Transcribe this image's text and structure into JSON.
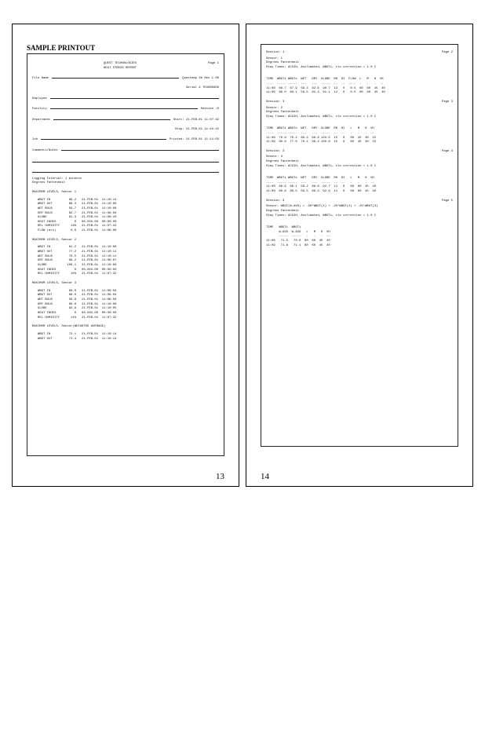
{
  "left": {
    "heading": "SAMPLE PRINTOUT",
    "report_title1": "QUEST TECHNOLOGIES",
    "report_title2": "HEAT STRESS REPORT",
    "page_label": "Page 1",
    "file_name_label": "File Name",
    "file_right1": "Questemp 36  Rev 1.00",
    "file_right2": "Serial # TEG060909",
    "employee_label": "Employee",
    "facility_label": "Facility",
    "session_label": "Session :0",
    "department_label": "Department",
    "start_label": "Start: 21-FEB-01  11:07:32",
    "stop_label": "Stop:  21-FEB-01  11:10:15",
    "job_label": "Job",
    "printed_label": "Printed: 21-FEB-01  11:14:03",
    "comments_label": "Comments/Notes",
    "interval": "Logging Interval:  1 minutes",
    "degrees": "Degrees Fahrenheit",
    "s1_title": "MAXIMUM LEVELS,  Sensor 1",
    "s1_rows": [
      [
        "WBGT IN",
        "69.2",
        "21-FEB-01  11:10:14"
      ],
      [
        "WBGT OUT",
        "68.3",
        "21-FEB-01  11:10:08"
      ],
      [
        "WET BULB",
        "59.7",
        "21-FEB-01  11:10:08"
      ],
      [
        "DRY BULB",
        "82.7",
        "21-FEB-01  11:09:56"
      ],
      [
        "GLOBE",
        "91.3",
        "21-FEB-01  11:08:20"
      ],
      [
        "HEAT INDEX",
        "0",
        "00-XXX-00  00:00:00"
      ],
      [
        "REL HUMIDITY",
        "14%",
        "21-FEB-01  11:07:32"
      ],
      [
        "FLOW (m/s)",
        "0.6",
        "21-FEB-01  11:09:08"
      ]
    ],
    "s2_title": "MAXIMUM LEVELS,  Sensor 2",
    "s2_rows": [
      [
        "WBGT IN",
        "81.2",
        "21-FEB-01  11:10:06"
      ],
      [
        "WBGT OUT",
        "77.2",
        "21-FEB-01  11:10:11"
      ],
      [
        "WET BULB",
        "70.5",
        "21-FEB-01  11:10:11"
      ],
      [
        "DRY BULB",
        "99.2",
        "21-FEB-01  11:09:07"
      ],
      [
        "GLOBE",
        "106.1",
        "21-FEB-01  11:10:06"
      ],
      [
        "HEAT INDEX",
        "0",
        "00-XXX-00  00:00:00"
      ],
      [
        "REL HUMIDITY",
        "15%",
        "21-FEB-01  11:07:32"
      ]
    ],
    "s3_title": "MAXIMUM LEVELS,  Sensor 3",
    "s3_rows": [
      [
        "WBGT IN",
        "69.0",
        "21-FEB-01  11:09:56"
      ],
      [
        "WBGT OUT",
        "68.6",
        "21-FEB-01  11:09:56"
      ],
      [
        "WET BULB",
        "58.8",
        "21-FEB-01  11:09:56"
      ],
      [
        "DRY BULB",
        "88.6",
        "21-FEB-01  11:10:08"
      ],
      [
        "GLOBE",
        "92.9",
        "21-FEB-01  11:10:05"
      ],
      [
        "HEAT INDEX",
        "0",
        "00-XXX-00  00:00:00"
      ],
      [
        "REL HUMIDITY",
        "11%",
        "21-FEB-01  11:07:32"
      ]
    ],
    "savg_title": "MAXIMUM LEVELS,  Sensor(WEIGHTED AVERAGE)",
    "savg_rows": [
      [
        "WBGT IN",
        "72.1",
        "21-FEB-01  11:10:14"
      ],
      [
        "WBGT OUT",
        "71.4",
        "21-FEB-01  11:10:14"
      ]
    ],
    "page_num": "13"
  },
  "right": {
    "page_num": "14",
    "blocks": [
      {
        "page_label": "Page 2",
        "head": [
          "Session: 1",
          "Sensor: 1",
          "Degrees Fahrenheit",
          "Stay Times: ACGIH, Acclimated, WBGTi, clo correction = 1.0 C"
        ],
        "cols": "TIME  WBGTi WBGTo  WET   DRY  GLOBE  RH  HI  FLOW  L   M   H  VH",
        "rows": [
          "11:08  68.7  67.9  59.4  82.6  90.7  13   0   0.5  60  60  45  40",
          "11:09  69.0  68.1  59.5  82.4  91.1  12   0   0.5  60  60  45  40"
        ]
      },
      {
        "page_label": "Page 3",
        "head": [
          "Session: 3",
          "Sensor: 2",
          "Degrees Fahrenheit",
          "Stay Times: ACGIH, Acclimated, WBGTi, clo correction = 1.0 C"
        ],
        "cols": "TIME  WBGTi WBGTo  WET   DRY  GLOBE  RH  HI   L   M   H  VH",
        "rows": [
          "11:08  79.9  76.2  69.4  98.8 104.5  15   0   60  45  30  15",
          "11:09  80.8  77.0  70.1  99.2 105.6  15   0   60  45  30  15"
        ]
      },
      {
        "page_label": "Page 4",
        "head": [
          "Session: 3",
          "Sensor: 3",
          "Degrees Fahrenheit",
          "Stay Times: ACGIH, Acclimated, WBGTi, clo correction = 1.0 C"
        ],
        "cols": "TIME  WBGTi WBGTo  WET   DRY  GLOBE  RH  HI   L   M   H  VH",
        "rows": [
          "11:08  68.6  68.1  58.2  88.0  92.7  11   0   60  60  45  40",
          "11:09  68.8  68.5  58.5  88.3  92.9  11   0   60  60  45  40"
        ]
      },
      {
        "page_label": "Page 5",
        "head": [
          "Session: 3",
          "Sensor: WBGT(W-AVG) = .50*WBGT(1) + .25*WBGT(2) + .25*WBGT(3)",
          "Degrees Fahrenheit",
          "Stay Times: ACGIH, Acclimated, WBGTi, clo correction = 1.0 C"
        ],
        "cols": "TIME   WBGTi  WBGTi\n       W-AVG  W-AVG   L   M   H  VH",
        "rows": [
          "11:08   71.5   70.0  60  60  45  40",
          "11:09   71.8   71.1  60  60  45  40"
        ]
      }
    ]
  }
}
